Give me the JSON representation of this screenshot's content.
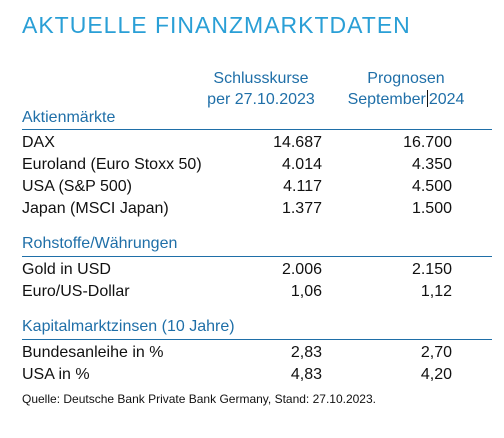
{
  "title": "AKTUELLE FINANZMARKTDATEN",
  "columns": {
    "close": {
      "line1": "Schlusskurse",
      "line2": "per 27.10.2023"
    },
    "forecast": {
      "line1": "Prognosen",
      "line2_a": "September",
      "line2_b": "2024"
    }
  },
  "sections": [
    {
      "title": "Aktienmärkte",
      "rows": [
        {
          "label": "DAX",
          "close": "14.687",
          "forecast": "16.700"
        },
        {
          "label": "Euroland (Euro Stoxx 50)",
          "close": "4.014",
          "forecast": "4.350"
        },
        {
          "label": "USA (S&P 500)",
          "close": "4.117",
          "forecast": "4.500"
        },
        {
          "label": "Japan (MSCI Japan)",
          "close": "1.377",
          "forecast": "1.500"
        }
      ]
    },
    {
      "title": "Rohstoffe/Währungen",
      "rows": [
        {
          "label": "Gold in USD",
          "close": "2.006",
          "forecast": "2.150"
        },
        {
          "label": "Euro/US-Dollar",
          "close": "1,06",
          "forecast": "1,12"
        }
      ]
    },
    {
      "title": "Kapitalmarktzinsen (10 Jahre)",
      "rows": [
        {
          "label": "Bundesanleihe in %",
          "close": "2,83",
          "forecast": "2,70"
        },
        {
          "label": "USA in %",
          "close": "4,83",
          "forecast": "4,20"
        }
      ]
    }
  ],
  "source": "Quelle: Deutsche Bank Private Bank Germany, Stand: 27.10.2023.",
  "colors": {
    "title": "#2a9fd6",
    "heading": "#1f6fa8",
    "text": "#111111"
  }
}
